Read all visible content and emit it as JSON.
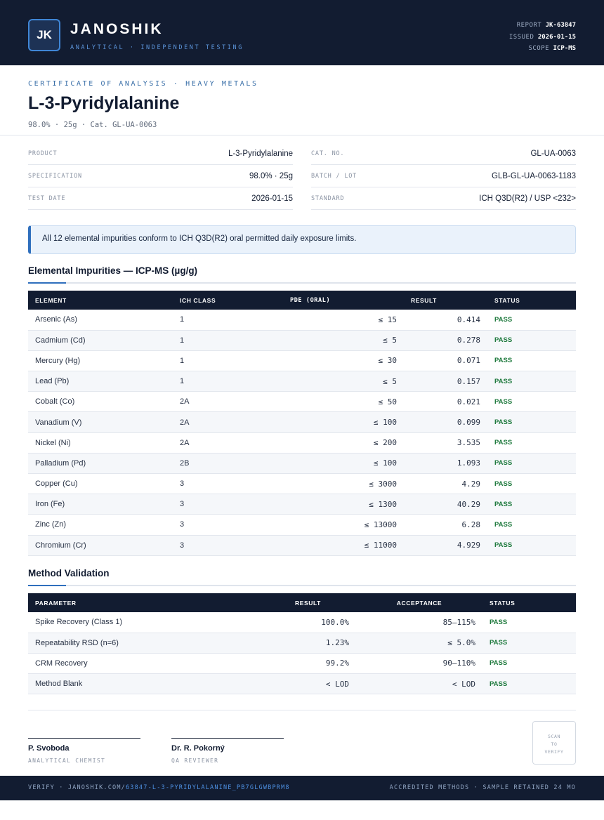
{
  "header": {
    "logo": "JK",
    "brand": "JANOSHIK",
    "tagline": "ANALYTICAL · INDEPENDENT TESTING",
    "meta": [
      {
        "key": "REPORT",
        "value": "JK-63847"
      },
      {
        "key": "ISSUED",
        "value": "2026-01-15"
      },
      {
        "key": "SCOPE",
        "value": "ICP-MS"
      }
    ]
  },
  "title_block": {
    "eyebrow": "CERTIFICATE OF ANALYSIS · HEAVY METALS",
    "title": "L-3-Pyridylalanine",
    "subline": "98.0% · 25g  ·  Cat. GL-UA-0063"
  },
  "info": {
    "left": [
      {
        "label": "PRODUCT",
        "value": "L-3-Pyridylalanine"
      },
      {
        "label": "SPECIFICATION",
        "value": "98.0% · 25g"
      },
      {
        "label": "TEST DATE",
        "value": "2026-01-15"
      }
    ],
    "right": [
      {
        "label": "CAT. NO.",
        "value": "GL-UA-0063"
      },
      {
        "label": "BATCH / LOT",
        "value": "GLB-GL-UA-0063-1183"
      },
      {
        "label": "STANDARD",
        "value": "ICH Q3D(R2) / USP <232>"
      }
    ]
  },
  "notice": "All 12 elemental impurities conform to ICH Q3D(R2) oral permitted daily exposure limits.",
  "impurities": {
    "title": "Elemental Impurities — ICP-MS (µg/g)",
    "headers": [
      "ELEMENT",
      "ICH CLASS",
      "PDE (ORAL)",
      "RESULT",
      "STATUS"
    ],
    "rows": [
      {
        "element": "Arsenic (As)",
        "class": "1",
        "pde": "≤ 15",
        "result": "0.414",
        "status": "PASS"
      },
      {
        "element": "Cadmium (Cd)",
        "class": "1",
        "pde": "≤ 5",
        "result": "0.278",
        "status": "PASS"
      },
      {
        "element": "Mercury (Hg)",
        "class": "1",
        "pde": "≤ 30",
        "result": "0.071",
        "status": "PASS"
      },
      {
        "element": "Lead (Pb)",
        "class": "1",
        "pde": "≤ 5",
        "result": "0.157",
        "status": "PASS"
      },
      {
        "element": "Cobalt (Co)",
        "class": "2A",
        "pde": "≤ 50",
        "result": "0.021",
        "status": "PASS"
      },
      {
        "element": "Vanadium (V)",
        "class": "2A",
        "pde": "≤ 100",
        "result": "0.099",
        "status": "PASS"
      },
      {
        "element": "Nickel (Ni)",
        "class": "2A",
        "pde": "≤ 200",
        "result": "3.535",
        "status": "PASS"
      },
      {
        "element": "Palladium (Pd)",
        "class": "2B",
        "pde": "≤ 100",
        "result": "1.093",
        "status": "PASS"
      },
      {
        "element": "Copper (Cu)",
        "class": "3",
        "pde": "≤ 3000",
        "result": "4.29",
        "status": "PASS"
      },
      {
        "element": "Iron (Fe)",
        "class": "3",
        "pde": "≤ 1300",
        "result": "40.29",
        "status": "PASS"
      },
      {
        "element": "Zinc (Zn)",
        "class": "3",
        "pde": "≤ 13000",
        "result": "6.28",
        "status": "PASS"
      },
      {
        "element": "Chromium (Cr)",
        "class": "3",
        "pde": "≤ 11000",
        "result": "4.929",
        "status": "PASS"
      }
    ]
  },
  "validation": {
    "title": "Method Validation",
    "headers": [
      "PARAMETER",
      "RESULT",
      "ACCEPTANCE",
      "STATUS"
    ],
    "rows": [
      {
        "parameter": "Spike Recovery (Class 1)",
        "result": "100.0%",
        "acceptance": "85–115%",
        "status": "PASS"
      },
      {
        "parameter": "Repeatability RSD (n=6)",
        "result": "1.23%",
        "acceptance": "≤ 5.0%",
        "status": "PASS"
      },
      {
        "parameter": "CRM Recovery",
        "result": "99.2%",
        "acceptance": "90–110%",
        "status": "PASS"
      },
      {
        "parameter": "Method Blank",
        "result": "< LOD",
        "acceptance": "< LOD",
        "status": "PASS"
      }
    ]
  },
  "signatures": [
    {
      "name": "P. Svoboda",
      "role": "ANALYTICAL CHEMIST"
    },
    {
      "name": "Dr. R. Pokorný",
      "role": "QA REVIEWER"
    }
  ],
  "scan": [
    "SCAN",
    "TO",
    "VERIFY"
  ],
  "footer": {
    "verify_prefix": "VERIFY · JANOSHIK.COM/",
    "verify_path": "63847-L-3-PYRIDYLALANINE_PB7GLGWBPRM8",
    "right": "ACCREDITED METHODS · SAMPLE RETAINED 24 MO"
  }
}
